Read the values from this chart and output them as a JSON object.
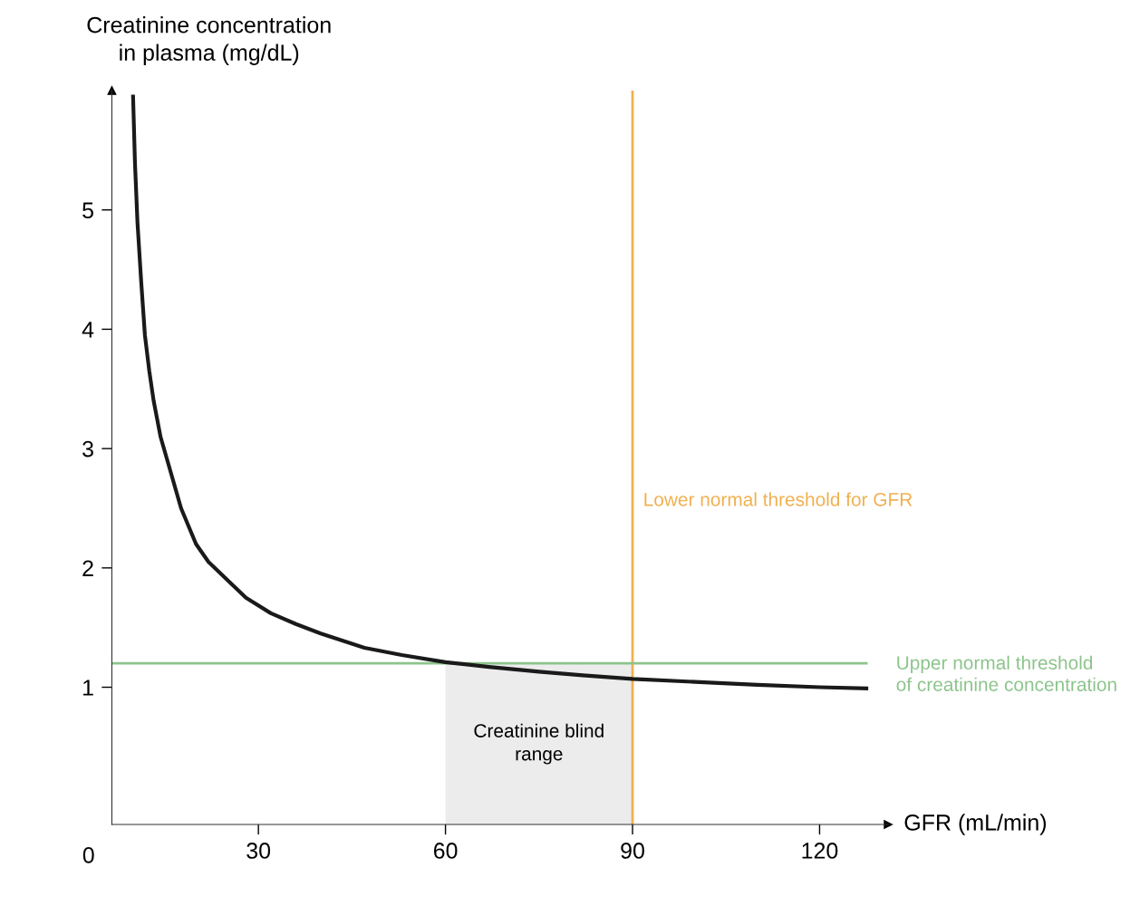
{
  "chart_data": {
    "type": "line",
    "xlabel": "GFR (mL/min)",
    "ylabel": "Creatinine concentration\nin plasma (mg/dL)",
    "series": [
      {
        "color": "#1a1a1a",
        "x": [
          9.9,
          10.2,
          10.6,
          11.2,
          11.8,
          12.5,
          13.2,
          14.3,
          15.4,
          17.6,
          20,
          22,
          25,
          28,
          32,
          36,
          40,
          47,
          53,
          60,
          67,
          75,
          82,
          90,
          100,
          110,
          120,
          127.5
        ],
        "values": [
          5.95,
          5.4,
          4.9,
          4.4,
          3.95,
          3.65,
          3.4,
          3.1,
          2.9,
          2.5,
          2.2,
          2.05,
          1.9,
          1.75,
          1.62,
          1.53,
          1.45,
          1.33,
          1.27,
          1.21,
          1.17,
          1.13,
          1.1,
          1.07,
          1.045,
          1.02,
          1.0,
          0.99
        ]
      }
    ],
    "xlim": [
      6.5,
      131
    ],
    "ylim": [
      -0.15,
      6.0
    ],
    "xticks": [
      30,
      60,
      90,
      120
    ],
    "yticks": [
      1,
      2,
      3,
      4,
      5
    ],
    "ref_lines": [
      {
        "axis": "x",
        "value": 90,
        "label": "Lower normal threshold for GFR",
        "color": "#f0b050"
      },
      {
        "axis": "y",
        "value": 1.2,
        "label": "Upper normal threshold\nof creatinine concentration",
        "color": "#8cc48c"
      }
    ],
    "bands": [
      {
        "axis": "x",
        "from": 60,
        "to": 90,
        "label": "Creatinine blind\nrange",
        "color": "#ececec"
      }
    ],
    "annotations": [
      "0"
    ],
    "grid": false,
    "legend": false,
    "marker": "none",
    "line_style": "solid"
  }
}
